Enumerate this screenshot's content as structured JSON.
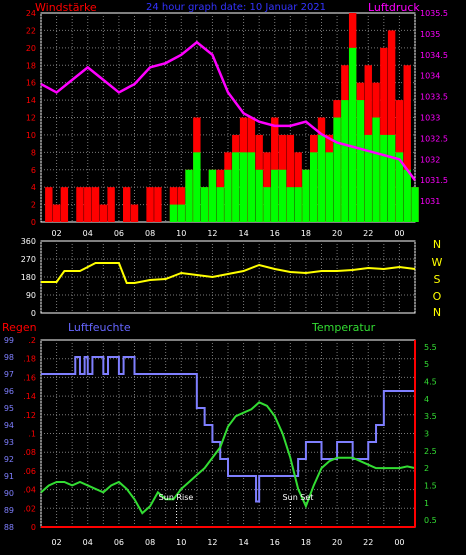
{
  "header": {
    "left": "Windstärke",
    "center": "24 hour graph date: 10 Januar 2021",
    "right": "Luftdruck"
  },
  "footer": {
    "left": "Regen",
    "center": "Luftfeuchte",
    "right": "Temperatur"
  },
  "compass": [
    "N",
    "W",
    "S",
    "O",
    "N"
  ],
  "annotations": {
    "sunrise": "Sun Rise",
    "sunset": "Sun Set"
  },
  "colors": {
    "wind_max": "#ff0000",
    "wind_avg": "#00ff00",
    "pressure": "#ff00ff",
    "direction": "#ffff00",
    "humidity": "#7f7fff",
    "temperature": "#33dd33",
    "rain": "#ff0000"
  },
  "chart_data": [
    {
      "type": "bar",
      "id": "wind_pressure",
      "x_ticks": [
        "02",
        "04",
        "06",
        "08",
        "10",
        "12",
        "14",
        "16",
        "18",
        "20",
        "22",
        "00"
      ],
      "xlim": [
        1,
        25
      ],
      "ylabel_left": "Windstärke",
      "ylim_left": [
        0,
        24
      ],
      "yticks_left": [
        0,
        2,
        4,
        6,
        8,
        10,
        12,
        14,
        16,
        18,
        20,
        22,
        24
      ],
      "ylabel_right": "Luftdruck",
      "ylim_right": [
        1030.5,
        1035.5
      ],
      "yticks_right": [
        1031,
        1031.5,
        1032,
        1032.5,
        1033,
        1033.5,
        1034,
        1034.5,
        1035,
        1035.5
      ],
      "wind_max_x": [
        1,
        1.5,
        2,
        2.5,
        3,
        3.5,
        4,
        4.5,
        5,
        5.5,
        6,
        6.5,
        7,
        7.5,
        8,
        8.5,
        9,
        9.5,
        10,
        10.5,
        11,
        11.5,
        12,
        12.5,
        13,
        13.5,
        14,
        14.5,
        15,
        15.5,
        16,
        16.5,
        17,
        17.5,
        18,
        18.5,
        19,
        19.5,
        20,
        20.5,
        21,
        21.5,
        22,
        22.5,
        23,
        23.5,
        24,
        24.5,
        25
      ],
      "wind_max": [
        0,
        4,
        2,
        4,
        0,
        4,
        4,
        4,
        2,
        4,
        0,
        4,
        2,
        0,
        4,
        4,
        0,
        4,
        4,
        6,
        12,
        4,
        6,
        6,
        8,
        10,
        12,
        12,
        10,
        8,
        12,
        10,
        10,
        8,
        6,
        10,
        12,
        10,
        14,
        18,
        24,
        16,
        18,
        16,
        20,
        22,
        14,
        18,
        4
      ],
      "wind_avg_x": [
        9,
        9.5,
        10,
        10.5,
        11,
        11.5,
        12,
        12.5,
        13,
        13.5,
        14,
        14.5,
        15,
        15.5,
        16,
        16.5,
        17,
        17.5,
        18,
        18.5,
        19,
        19.5,
        20,
        20.5,
        21,
        21.5,
        22,
        22.5,
        23,
        23.5,
        24,
        24.5,
        25
      ],
      "wind_avg": [
        0,
        2,
        2,
        6,
        8,
        4,
        6,
        4,
        6,
        8,
        8,
        8,
        6,
        4,
        6,
        6,
        4,
        4,
        6,
        8,
        10,
        8,
        12,
        14,
        20,
        14,
        10,
        12,
        10,
        10,
        8,
        6,
        4
      ],
      "pressure_x": [
        1,
        2,
        3,
        4,
        5,
        6,
        7,
        8,
        9,
        10,
        11,
        12,
        13,
        14,
        15,
        16,
        17,
        18,
        19,
        20,
        21,
        22,
        23,
        24,
        25
      ],
      "pressure": [
        1033.8,
        1033.6,
        1033.9,
        1034.2,
        1033.9,
        1033.6,
        1033.8,
        1034.2,
        1034.3,
        1034.5,
        1034.8,
        1034.5,
        1033.6,
        1033.1,
        1032.9,
        1032.8,
        1032.8,
        1032.9,
        1032.6,
        1032.4,
        1032.3,
        1032.2,
        1032.1,
        1032.0,
        1031.5
      ]
    },
    {
      "type": "line",
      "id": "wind_direction",
      "xlim": [
        1,
        25
      ],
      "ylim": [
        0,
        360
      ],
      "yticks": [
        0,
        90,
        180,
        270,
        360
      ],
      "x": [
        1,
        2,
        2.5,
        3,
        3.5,
        4,
        4.5,
        5,
        6,
        6.5,
        7,
        8,
        9,
        10,
        11,
        12,
        13,
        14,
        15,
        16,
        17,
        18,
        19,
        20,
        21,
        22,
        23,
        24,
        25
      ],
      "values": [
        155,
        155,
        210,
        210,
        210,
        230,
        250,
        250,
        250,
        150,
        150,
        165,
        170,
        200,
        190,
        180,
        195,
        210,
        240,
        220,
        205,
        200,
        210,
        210,
        215,
        225,
        220,
        230,
        220
      ]
    },
    {
      "type": "line",
      "id": "rain_humidity_temp",
      "x_ticks": [
        "02",
        "04",
        "06",
        "08",
        "10",
        "12",
        "14",
        "16",
        "18",
        "20",
        "22",
        "00"
      ],
      "xlim": [
        1,
        25
      ],
      "ylabel_left1": "Regen",
      "ylim_left1": [
        0,
        0.2
      ],
      "yticks_left1": [
        0,
        0.02,
        0.04,
        0.06,
        0.08,
        0.1,
        0.12,
        0.14,
        0.16,
        0.18,
        0.2
      ],
      "ylabel_left2": "Luftfeuchte",
      "ylim_left2": [
        88,
        99
      ],
      "yticks_left2": [
        88,
        89,
        90,
        91,
        92,
        93,
        94,
        95,
        96,
        97,
        98,
        99
      ],
      "ylabel_right": "Temperatur",
      "ylim_right": [
        0.3,
        5.7
      ],
      "yticks_right": [
        0.5,
        1,
        1.5,
        2,
        2.5,
        3,
        3.5,
        4,
        4.5,
        5,
        5.5
      ],
      "humidity_x": [
        1,
        3,
        3.2,
        3.5,
        3.8,
        4,
        4.3,
        4.6,
        5,
        5.3,
        5.6,
        6,
        6.3,
        6.6,
        7,
        8,
        9,
        10,
        11,
        11.5,
        12,
        12.5,
        13,
        13.5,
        14,
        14.5,
        14.8,
        15,
        16,
        17,
        17.5,
        18,
        19,
        20,
        21,
        22,
        22.5,
        23,
        24,
        25
      ],
      "humidity": [
        97,
        97,
        98,
        97,
        98,
        97,
        98,
        98,
        97,
        98,
        98,
        97,
        98,
        98,
        97,
        97,
        97,
        97,
        95,
        94,
        93,
        92,
        91,
        91,
        91,
        91,
        89.5,
        91,
        91,
        91,
        92,
        93,
        92,
        93,
        92,
        93,
        94,
        96,
        96,
        96
      ],
      "temperature_x": [
        1,
        1.5,
        2,
        2.5,
        3,
        3.5,
        4,
        4.5,
        5,
        5.5,
        6,
        6.5,
        7,
        7.5,
        8,
        8.5,
        9,
        9.5,
        10,
        10.5,
        11,
        11.5,
        12,
        12.5,
        13,
        13.5,
        14,
        14.5,
        15,
        15.5,
        16,
        16.5,
        17,
        17.5,
        18,
        18.5,
        19,
        19.5,
        20,
        20.5,
        21,
        21.5,
        22,
        22.5,
        23,
        23.5,
        24,
        24.5,
        25
      ],
      "temperature": [
        1.3,
        1.5,
        1.6,
        1.6,
        1.5,
        1.6,
        1.5,
        1.4,
        1.3,
        1.5,
        1.6,
        1.4,
        1.1,
        0.7,
        0.9,
        1.3,
        1.1,
        1.1,
        1.4,
        1.6,
        1.8,
        2.0,
        2.3,
        2.6,
        3.2,
        3.5,
        3.6,
        3.7,
        3.9,
        3.8,
        3.5,
        3.0,
        2.3,
        1.4,
        0.9,
        1.5,
        2.0,
        2.2,
        2.3,
        2.3,
        2.3,
        2.2,
        2.1,
        2.0,
        2.0,
        2.0,
        2.0,
        2.05,
        2.0
      ],
      "rain_x": [
        1,
        25
      ],
      "rain": [
        0,
        0
      ]
    }
  ]
}
